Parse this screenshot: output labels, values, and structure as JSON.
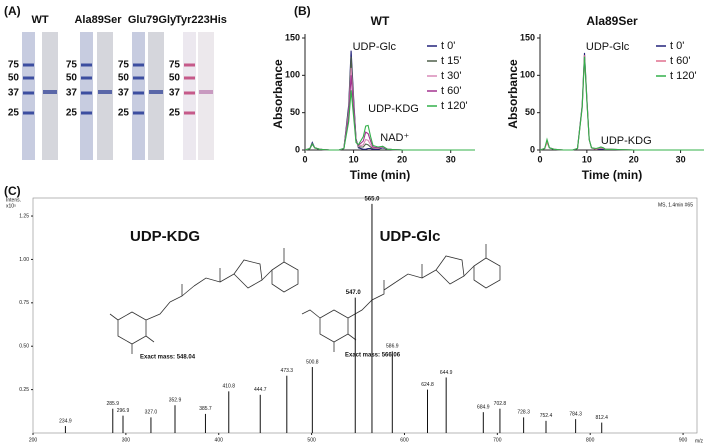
{
  "panel_a": {
    "label": "(A)",
    "gels": [
      {
        "name": "WT",
        "markers": [
          "75",
          "50",
          "37",
          "25"
        ]
      },
      {
        "name": "Ala89Ser",
        "markers": [
          "75",
          "50",
          "37",
          "25"
        ]
      },
      {
        "name": "Glu79Gly",
        "markers": [
          "75",
          "50",
          "37",
          "25"
        ]
      },
      {
        "name": "Tyr223His",
        "markers": [
          "75",
          "50",
          "37",
          "25"
        ]
      }
    ]
  },
  "panel_b_label": "(B)",
  "panel_c_label": "(C)",
  "chart_data": [
    {
      "type": "line",
      "title": "WT",
      "xlabel": "Time (min)",
      "ylabel": "Absorbance",
      "xlim": [
        0,
        35
      ],
      "ylim": [
        0,
        150
      ],
      "xticks": [
        0,
        10,
        20,
        30
      ],
      "yticks": [
        0,
        50,
        100,
        150
      ],
      "legend": "upper right",
      "annotations": [
        "UDP-Glc",
        "UDP-KDG",
        "NAD⁺"
      ],
      "x": [
        0,
        1,
        1.5,
        2,
        3,
        5,
        7,
        8,
        9,
        9.5,
        10,
        10.5,
        11,
        12,
        12.5,
        13,
        13.5,
        14,
        15,
        16,
        17,
        20,
        25,
        30,
        35
      ],
      "series": [
        {
          "name": "t 0'",
          "color": "#23237a",
          "values": [
            0,
            2,
            10,
            3,
            1,
            0,
            0,
            2,
            60,
            133,
            70,
            15,
            3,
            1,
            1,
            2,
            2,
            1,
            1,
            3,
            1,
            0,
            0,
            0,
            0
          ]
        },
        {
          "name": "t 15'",
          "color": "#4f5f4a",
          "values": [
            0,
            2,
            8,
            3,
            1,
            0,
            0,
            2,
            55,
            125,
            65,
            14,
            4,
            4,
            8,
            7,
            4,
            2,
            2,
            4,
            1,
            0,
            0,
            0,
            0
          ]
        },
        {
          "name": "t 30'",
          "color": "#d88ab8",
          "values": [
            0,
            2,
            8,
            3,
            1,
            0,
            0,
            2,
            50,
            110,
            60,
            12,
            5,
            7,
            14,
            13,
            7,
            3,
            2,
            4,
            1,
            0,
            0,
            0,
            0
          ]
        },
        {
          "name": "t 60'",
          "color": "#a2338f",
          "values": [
            0,
            2,
            8,
            3,
            1,
            0,
            0,
            2,
            45,
            100,
            55,
            12,
            6,
            12,
            24,
            22,
            12,
            4,
            3,
            5,
            1,
            0,
            0,
            0,
            0
          ]
        },
        {
          "name": "t 120'",
          "color": "#33b04a",
          "values": [
            0,
            2,
            8,
            3,
            1,
            0,
            0,
            2,
            38,
            80,
            45,
            10,
            7,
            18,
            32,
            33,
            18,
            6,
            4,
            5,
            1,
            0,
            0,
            0,
            0
          ]
        }
      ]
    },
    {
      "type": "line",
      "title": "Ala89Ser",
      "xlabel": "Time (min)",
      "ylabel": "Absorbance",
      "xlim": [
        0,
        35
      ],
      "ylim": [
        0,
        150
      ],
      "xticks": [
        0,
        10,
        20,
        30
      ],
      "yticks": [
        0,
        50,
        100,
        150
      ],
      "legend": "upper right",
      "annotations": [
        "UDP-Glc",
        "UDP-KDG"
      ],
      "x": [
        0,
        1,
        1.5,
        2,
        3,
        5,
        7,
        8,
        9,
        9.5,
        10,
        10.5,
        11,
        12,
        12.5,
        13,
        13.5,
        14,
        15,
        20,
        25,
        30,
        35
      ],
      "series": [
        {
          "name": "t 0'",
          "color": "#23237a",
          "values": [
            0,
            2,
            12,
            3,
            1,
            0,
            0,
            2,
            60,
            130,
            68,
            14,
            3,
            1,
            1,
            1,
            1,
            1,
            1,
            0,
            0,
            0,
            0
          ]
        },
        {
          "name": "t 60'",
          "color": "#e0708f",
          "values": [
            0,
            2,
            10,
            3,
            1,
            0,
            0,
            2,
            58,
            127,
            66,
            14,
            3,
            1,
            2,
            3,
            2,
            1,
            1,
            0,
            0,
            0,
            0
          ]
        },
        {
          "name": "t 120'",
          "color": "#33b04a",
          "values": [
            0,
            2,
            14,
            3,
            1,
            0,
            0,
            2,
            57,
            125,
            65,
            14,
            3,
            2,
            3,
            4,
            3,
            1,
            1,
            0,
            0,
            0,
            0
          ]
        }
      ]
    },
    {
      "type": "spectrum",
      "ylabel": "Intens.",
      "yscale_label": "x10⁵",
      "info": "MS, 1.4min #65",
      "xlabel": "m/z",
      "xlim": [
        200,
        915
      ],
      "ylim": [
        0,
        1.4
      ],
      "xticks": [
        200,
        300,
        400,
        500,
        600,
        700,
        800,
        900
      ],
      "yticks": [
        0.25,
        {
          "value": 0.5,
          "label": "0.50"
        },
        0.75,
        {
          "value": 1,
          "label": "1.00"
        },
        1.25
      ],
      "compounds": [
        {
          "name": "UDP-KDG",
          "exact_mass": "Exact mass: 548.04"
        },
        {
          "name": "UDP-Glc",
          "exact_mass": "Exact mass: 566.06"
        }
      ],
      "color": "#111",
      "x": [
        234.9,
        285.9,
        296.9,
        327.0,
        352.9,
        385.7,
        410.8,
        444.7,
        473.3,
        500.8,
        547.0,
        565.0,
        586.9,
        624.8,
        644.9,
        684.9,
        702.8,
        728.3,
        752.4,
        784.3,
        812.4
      ],
      "x_labels": [
        "234.9",
        "285.9",
        "296.9",
        "327.0",
        "352.9",
        "385.7",
        "410.8",
        "444.7",
        "473.3",
        "500.8",
        "547.0",
        "565.0",
        "586.9",
        "624.8",
        "644.9",
        "684.9",
        "702.8",
        "728.3",
        "752.4",
        "784.3",
        "812.4"
      ],
      "values": [
        0.04,
        0.14,
        0.1,
        0.09,
        0.16,
        0.11,
        0.24,
        0.22,
        0.33,
        0.38,
        0.78,
        1.32,
        0.47,
        0.25,
        0.32,
        0.12,
        0.14,
        0.09,
        0.07,
        0.08,
        0.06
      ]
    }
  ]
}
